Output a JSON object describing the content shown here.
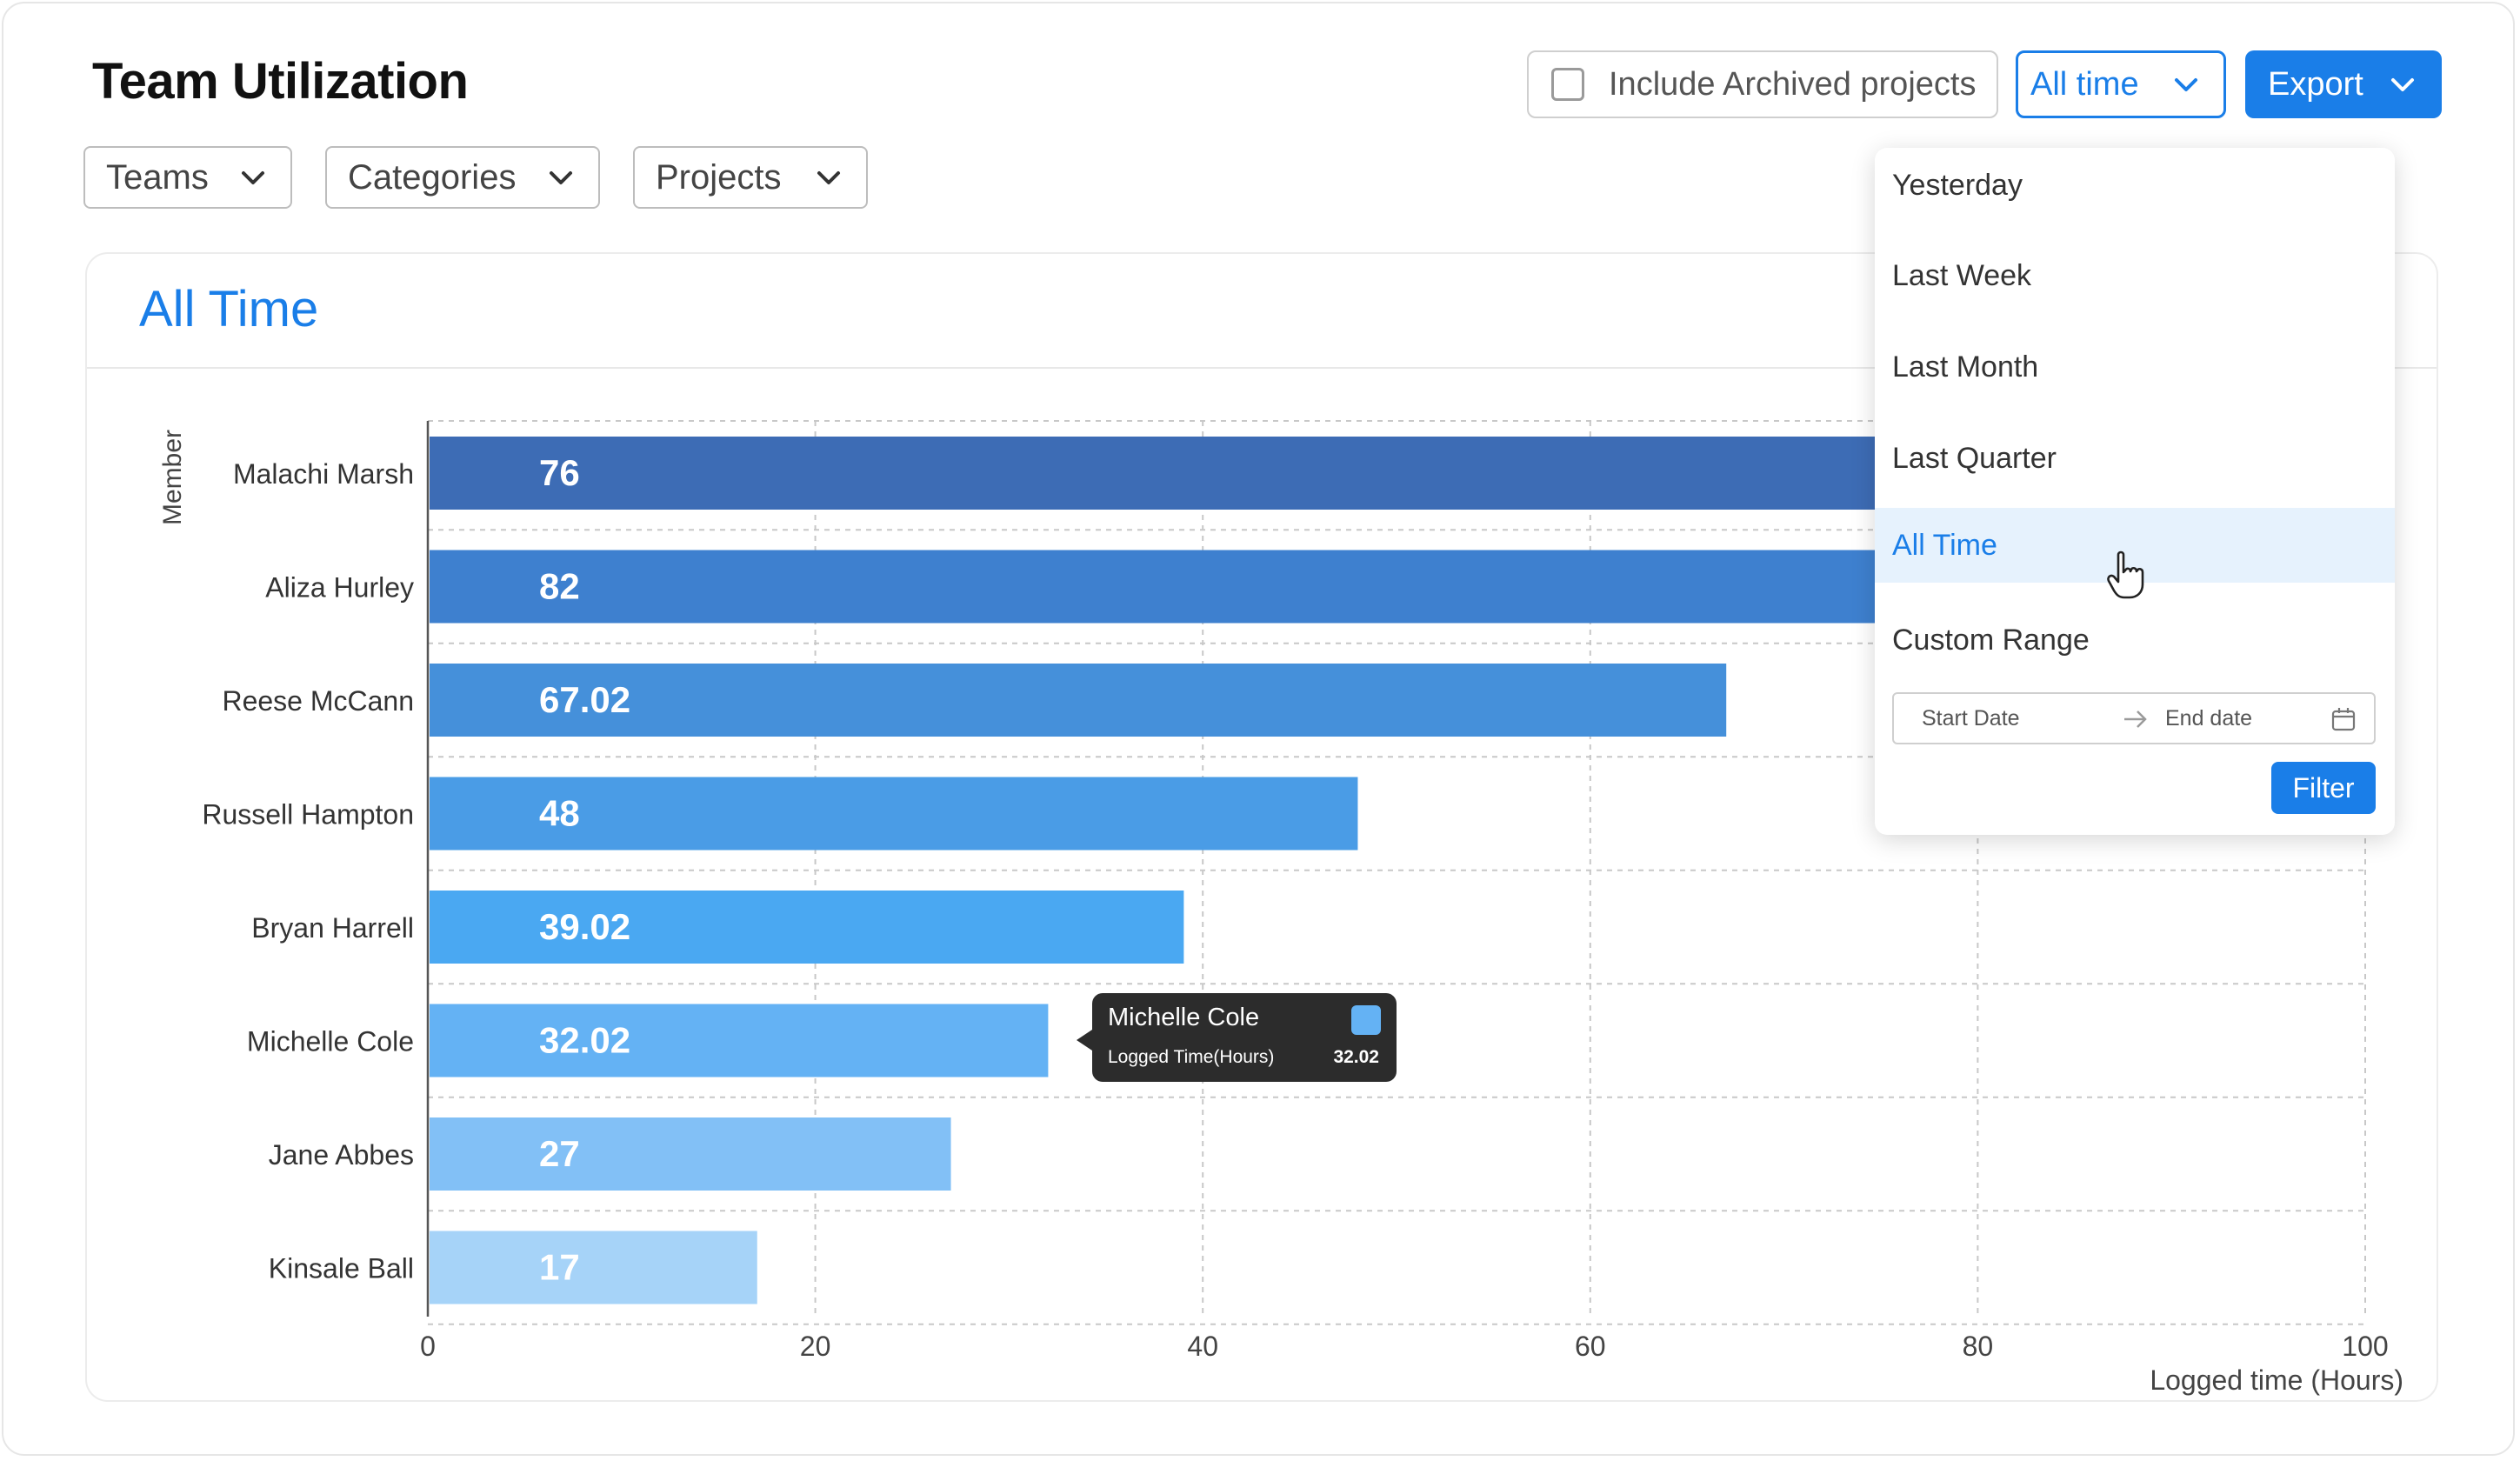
{
  "header": {
    "title": "Team Utilization",
    "archived_label": "Include Archived projects",
    "archived_checked": false,
    "time_select": "All time",
    "export_label": "Export"
  },
  "filters": [
    "Teams",
    "Categories",
    "Projects"
  ],
  "card": {
    "title": "All Time"
  },
  "chart_data": {
    "type": "bar",
    "orientation": "horizontal",
    "categories": [
      "Malachi Marsh",
      "Aliza Hurley",
      "Reese McCann",
      "Russell Hampton",
      "Bryan Harrell",
      "Michelle Cole",
      "Jane Abbes",
      "Kinsale Ball"
    ],
    "values": [
      76,
      82,
      67.02,
      48,
      39.02,
      32.02,
      27,
      17
    ],
    "value_labels": [
      "76",
      "82",
      "67.02",
      "48",
      "39.02",
      "32.02",
      "27",
      "17"
    ],
    "xlabel": "Logged time (Hours)",
    "ylabel": "Member",
    "xlim": [
      0,
      100
    ],
    "xticks": [
      "0",
      "20",
      "40",
      "60",
      "80",
      "100"
    ],
    "grid": true,
    "bar_colors": [
      "#3d6cb5",
      "#3e80cf",
      "#4590da",
      "#4a9ce6",
      "#4aa8f2",
      "#64b2f4",
      "#82c0f6",
      "#a6d3f8"
    ]
  },
  "tooltip": {
    "name": "Michelle Cole",
    "label": "Logged Time(Hours)",
    "value": "32.02",
    "color": "#64b2f4"
  },
  "dropdown": {
    "items": [
      "Yesterday",
      "Last Week",
      "Last Month",
      "Last Quarter",
      "All Time",
      "Custom Range"
    ],
    "active": "All Time",
    "start_placeholder": "Start Date",
    "end_placeholder": "End date",
    "filter_label": "Filter"
  },
  "colors": {
    "accent": "#1a7ee8",
    "tooltip_bg": "#2c2c2c",
    "active_item_bg": "#e6f2fd"
  }
}
